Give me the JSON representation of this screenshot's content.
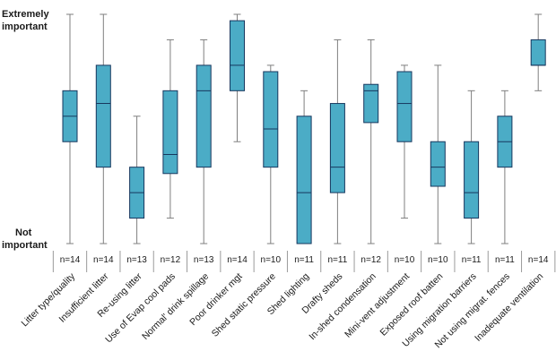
{
  "chart_data": {
    "type": "boxplot",
    "y_axis": {
      "top_label": [
        "Extremely",
        "important"
      ],
      "bottom_label": [
        "Not",
        "important"
      ],
      "range": [
        0,
        9
      ]
    },
    "series": [
      {
        "category": "Litter type/quality",
        "n": "n=14",
        "min": 0,
        "q1": 4,
        "median": 5,
        "q3": 6,
        "max": 9
      },
      {
        "category": "Insufficient litter",
        "n": "n=14",
        "min": 0,
        "q1": 3,
        "median": 5.5,
        "q3": 7,
        "max": 9
      },
      {
        "category": "Re-using litter",
        "n": "n=13",
        "min": 0,
        "q1": 1,
        "median": 2,
        "q3": 3,
        "max": 5
      },
      {
        "category": "Use of Evap cool pads",
        "n": "n=12",
        "min": 1,
        "q1": 2.75,
        "median": 3.5,
        "q3": 6,
        "max": 8
      },
      {
        "category": "Normal' drink spillage",
        "n": "n=13",
        "min": 0,
        "q1": 3,
        "median": 6,
        "q3": 7,
        "max": 8
      },
      {
        "category": "Poor drinker mgt",
        "n": "n=14",
        "min": 4,
        "q1": 6,
        "median": 7,
        "q3": 8.75,
        "max": 9
      },
      {
        "category": "Shed static pressure",
        "n": "n=10",
        "min": 0,
        "q1": 3,
        "median": 4.5,
        "q3": 6.75,
        "max": 7
      },
      {
        "category": "Shed lighting",
        "n": "n=11",
        "min": 0,
        "q1": 0,
        "median": 2,
        "q3": 5,
        "max": 6
      },
      {
        "category": "Drafty sheds",
        "n": "n=11",
        "min": 0,
        "q1": 2,
        "median": 3,
        "q3": 5.5,
        "max": 8
      },
      {
        "category": "In-shed condensation",
        "n": "n=12",
        "min": 0,
        "q1": 4.75,
        "median": 6,
        "q3": 6.25,
        "max": 8
      },
      {
        "category": "Mini-vent adjustment",
        "n": "n=10",
        "min": 1,
        "q1": 4,
        "median": 5.5,
        "q3": 6.75,
        "max": 7
      },
      {
        "category": "Exposed roof batten",
        "n": "n=10",
        "min": 0,
        "q1": 2.25,
        "median": 3,
        "q3": 4,
        "max": 7
      },
      {
        "category": "Using migration barriers",
        "n": "n=11",
        "min": 0,
        "q1": 1,
        "median": 2,
        "q3": 4,
        "max": 6
      },
      {
        "category": "Not using migrat. fences",
        "n": "n=11",
        "min": 0,
        "q1": 3,
        "median": 4,
        "q3": 5,
        "max": 6
      },
      {
        "category": "Inadequate ventilation",
        "n": "n=14",
        "min": 6,
        "q1": 7,
        "median": 7,
        "q3": 8,
        "max": 9
      }
    ],
    "colors": {
      "box_fill": "#4bacc6",
      "box_stroke": "#17375e",
      "whisker": "#7f7f7f"
    }
  }
}
